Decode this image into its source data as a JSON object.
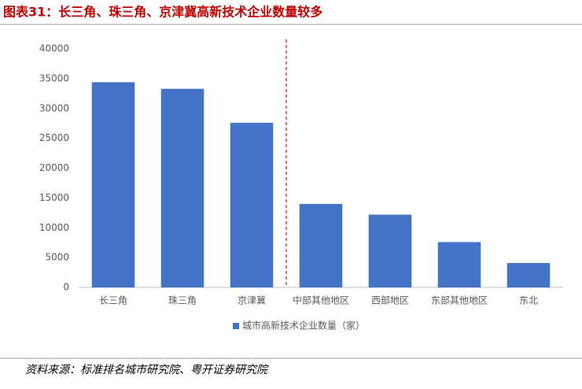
{
  "chart_data": {
    "type": "bar",
    "title": "图表31：长三角、珠三角、京津冀高新技术企业数量较多",
    "source": "资料来源：标准排名城市研究院、粤开证券研究院",
    "categories": [
      "长三角",
      "珠三角",
      "京津冀",
      "中部其他地区",
      "西部地区",
      "东部其他地区",
      "东北"
    ],
    "series": [
      {
        "name": "城市高新技术企业数量（家）",
        "color": "#4472c4",
        "values": [
          34400,
          33300,
          27600,
          14000,
          12200,
          7600,
          4100
        ]
      }
    ],
    "ylim": [
      0,
      40000
    ],
    "yticks": [
      0,
      5000,
      10000,
      15000,
      20000,
      25000,
      30000,
      35000,
      40000
    ],
    "grid": false
  }
}
